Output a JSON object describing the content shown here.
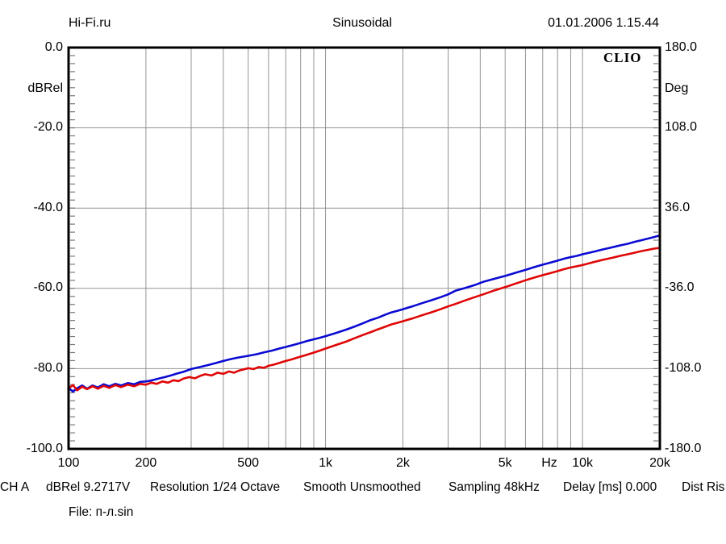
{
  "header": {
    "site": "Hi-Fi.ru",
    "measurement": "Sinusoidal",
    "datetime": "01.01.2006 1.15.44"
  },
  "chart_data": {
    "type": "line",
    "title": "Sinusoidal",
    "logo": "CLIO",
    "grid": true,
    "legend": "none",
    "x_axis": {
      "scale": "log",
      "min": 100,
      "max": 20000,
      "unit_label": "Hz",
      "tick_values": [
        100,
        200,
        500,
        1000,
        2000,
        5000,
        10000,
        20000
      ],
      "tick_labels": [
        "100",
        "200",
        "500",
        "1k",
        "2k",
        "5k",
        "10k",
        "20k"
      ],
      "gridline_values": [
        200,
        300,
        400,
        500,
        600,
        700,
        800,
        900,
        1000,
        2000,
        3000,
        4000,
        5000,
        6000,
        7000,
        8000,
        9000,
        10000
      ]
    },
    "y_left": {
      "label": "dBRel",
      "min": -100,
      "max": 0,
      "tick_values": [
        0,
        -20,
        -40,
        -60,
        -80,
        -100
      ],
      "tick_labels": [
        "0.0",
        "-20.0",
        "-40.0",
        "-60.0",
        "-80.0",
        "-100.0"
      ],
      "gridline_values": [
        -20,
        -40,
        -60,
        -80
      ],
      "minor_tick_step": 2
    },
    "y_right": {
      "label": "Deg",
      "min": -180,
      "max": 180,
      "tick_values": [
        180,
        108,
        36,
        -36,
        -108,
        -180
      ],
      "tick_labels": [
        "180.0",
        "108.0",
        "36.0",
        "-36.0",
        "-108.0",
        "-180.0"
      ]
    },
    "series": [
      {
        "name": "response-blue",
        "color": "#0a0ad2",
        "width": 2.6,
        "points": [
          [
            100,
            -84.8
          ],
          [
            104,
            -85.7
          ],
          [
            108,
            -84.9
          ],
          [
            113,
            -84.2
          ],
          [
            118,
            -85.0
          ],
          [
            124,
            -84.2
          ],
          [
            130,
            -84.7
          ],
          [
            137,
            -83.9
          ],
          [
            144,
            -84.4
          ],
          [
            152,
            -83.8
          ],
          [
            160,
            -84.2
          ],
          [
            170,
            -83.6
          ],
          [
            180,
            -83.9
          ],
          [
            190,
            -83.3
          ],
          [
            200,
            -83.2
          ],
          [
            212,
            -82.9
          ],
          [
            224,
            -82.5
          ],
          [
            237,
            -82.1
          ],
          [
            250,
            -81.7
          ],
          [
            265,
            -81.2
          ],
          [
            280,
            -80.8
          ],
          [
            300,
            -80.1
          ],
          [
            320,
            -79.7
          ],
          [
            340,
            -79.3
          ],
          [
            360,
            -78.9
          ],
          [
            380,
            -78.5
          ],
          [
            400,
            -78.1
          ],
          [
            430,
            -77.6
          ],
          [
            460,
            -77.2
          ],
          [
            500,
            -76.8
          ],
          [
            540,
            -76.4
          ],
          [
            580,
            -75.9
          ],
          [
            620,
            -75.5
          ],
          [
            660,
            -75.0
          ],
          [
            700,
            -74.6
          ],
          [
            750,
            -74.1
          ],
          [
            800,
            -73.6
          ],
          [
            850,
            -73.1
          ],
          [
            900,
            -72.7
          ],
          [
            950,
            -72.3
          ],
          [
            1000,
            -71.9
          ],
          [
            1100,
            -71.1
          ],
          [
            1200,
            -70.3
          ],
          [
            1300,
            -69.5
          ],
          [
            1400,
            -68.7
          ],
          [
            1500,
            -67.9
          ],
          [
            1600,
            -67.3
          ],
          [
            1700,
            -66.6
          ],
          [
            1800,
            -66.0
          ],
          [
            1900,
            -65.6
          ],
          [
            2000,
            -65.2
          ],
          [
            2200,
            -64.4
          ],
          [
            2400,
            -63.6
          ],
          [
            2600,
            -62.9
          ],
          [
            2800,
            -62.2
          ],
          [
            3000,
            -61.5
          ],
          [
            3200,
            -60.6
          ],
          [
            3500,
            -59.9
          ],
          [
            3800,
            -59.2
          ],
          [
            4100,
            -58.4
          ],
          [
            4500,
            -57.7
          ],
          [
            5000,
            -56.9
          ],
          [
            5500,
            -56.1
          ],
          [
            6000,
            -55.4
          ],
          [
            6500,
            -54.7
          ],
          [
            7000,
            -54.1
          ],
          [
            7500,
            -53.6
          ],
          [
            8000,
            -53.1
          ],
          [
            8500,
            -52.6
          ],
          [
            9000,
            -52.2
          ],
          [
            9500,
            -51.9
          ],
          [
            10000,
            -51.5
          ],
          [
            11000,
            -50.9
          ],
          [
            12000,
            -50.3
          ],
          [
            13000,
            -49.8
          ],
          [
            14000,
            -49.3
          ],
          [
            15000,
            -48.9
          ],
          [
            16000,
            -48.4
          ],
          [
            17000,
            -48.0
          ],
          [
            18000,
            -47.6
          ],
          [
            19000,
            -47.2
          ],
          [
            20000,
            -46.8
          ]
        ]
      },
      {
        "name": "response-red",
        "color": "#e00505",
        "width": 2.6,
        "points": [
          [
            100,
            -84.9
          ],
          [
            104,
            -84.1
          ],
          [
            108,
            -85.4
          ],
          [
            113,
            -84.5
          ],
          [
            118,
            -85.1
          ],
          [
            124,
            -84.4
          ],
          [
            130,
            -85.0
          ],
          [
            137,
            -84.3
          ],
          [
            144,
            -84.8
          ],
          [
            152,
            -84.1
          ],
          [
            160,
            -84.6
          ],
          [
            170,
            -84.0
          ],
          [
            180,
            -84.4
          ],
          [
            190,
            -83.8
          ],
          [
            200,
            -84.0
          ],
          [
            210,
            -83.5
          ],
          [
            220,
            -83.8
          ],
          [
            232,
            -83.2
          ],
          [
            244,
            -83.5
          ],
          [
            256,
            -82.9
          ],
          [
            268,
            -83.1
          ],
          [
            280,
            -82.5
          ],
          [
            295,
            -82.1
          ],
          [
            310,
            -82.4
          ],
          [
            325,
            -81.8
          ],
          [
            340,
            -81.4
          ],
          [
            360,
            -81.7
          ],
          [
            380,
            -81.0
          ],
          [
            400,
            -81.3
          ],
          [
            420,
            -80.7
          ],
          [
            440,
            -81.0
          ],
          [
            460,
            -80.5
          ],
          [
            480,
            -80.2
          ],
          [
            500,
            -79.9
          ],
          [
            525,
            -80.1
          ],
          [
            550,
            -79.6
          ],
          [
            575,
            -79.8
          ],
          [
            600,
            -79.3
          ],
          [
            630,
            -79.0
          ],
          [
            660,
            -78.6
          ],
          [
            700,
            -78.1
          ],
          [
            740,
            -77.7
          ],
          [
            780,
            -77.2
          ],
          [
            820,
            -76.8
          ],
          [
            860,
            -76.4
          ],
          [
            900,
            -76.0
          ],
          [
            950,
            -75.5
          ],
          [
            1000,
            -75.0
          ],
          [
            1100,
            -74.1
          ],
          [
            1200,
            -73.3
          ],
          [
            1300,
            -72.4
          ],
          [
            1400,
            -71.6
          ],
          [
            1500,
            -70.9
          ],
          [
            1600,
            -70.2
          ],
          [
            1700,
            -69.6
          ],
          [
            1800,
            -69.0
          ],
          [
            1900,
            -68.6
          ],
          [
            2000,
            -68.2
          ],
          [
            2200,
            -67.4
          ],
          [
            2400,
            -66.6
          ],
          [
            2600,
            -65.9
          ],
          [
            2800,
            -65.2
          ],
          [
            3000,
            -64.5
          ],
          [
            3200,
            -63.9
          ],
          [
            3500,
            -63.0
          ],
          [
            3800,
            -62.2
          ],
          [
            4100,
            -61.5
          ],
          [
            4500,
            -60.6
          ],
          [
            5000,
            -59.7
          ],
          [
            5500,
            -58.8
          ],
          [
            6000,
            -58.0
          ],
          [
            6500,
            -57.3
          ],
          [
            7000,
            -56.7
          ],
          [
            7500,
            -56.2
          ],
          [
            8000,
            -55.7
          ],
          [
            8500,
            -55.2
          ],
          [
            9000,
            -54.8
          ],
          [
            9500,
            -54.5
          ],
          [
            10000,
            -54.2
          ],
          [
            11000,
            -53.5
          ],
          [
            12000,
            -52.9
          ],
          [
            13000,
            -52.4
          ],
          [
            14000,
            -51.9
          ],
          [
            15000,
            -51.5
          ],
          [
            16000,
            -51.1
          ],
          [
            17000,
            -50.7
          ],
          [
            18000,
            -50.4
          ],
          [
            19000,
            -50.1
          ],
          [
            20000,
            -49.9
          ]
        ]
      }
    ]
  },
  "status_bar": {
    "items": [
      "CH A",
      "dBRel 9.2717V",
      "Resolution 1/24 Octave",
      "Smooth Unsmoothed",
      "Sampling 48kHz",
      "Delay [ms] 0.000",
      "Dist Ris"
    ]
  },
  "file_line": "File: п-л.sin",
  "colors": {
    "curve_blue": "#0a0ad2",
    "curve_red": "#e00505",
    "gridline": "#949494",
    "minor_tick": "#7a7a7a",
    "border": "#000000",
    "background": "#ffffff"
  }
}
